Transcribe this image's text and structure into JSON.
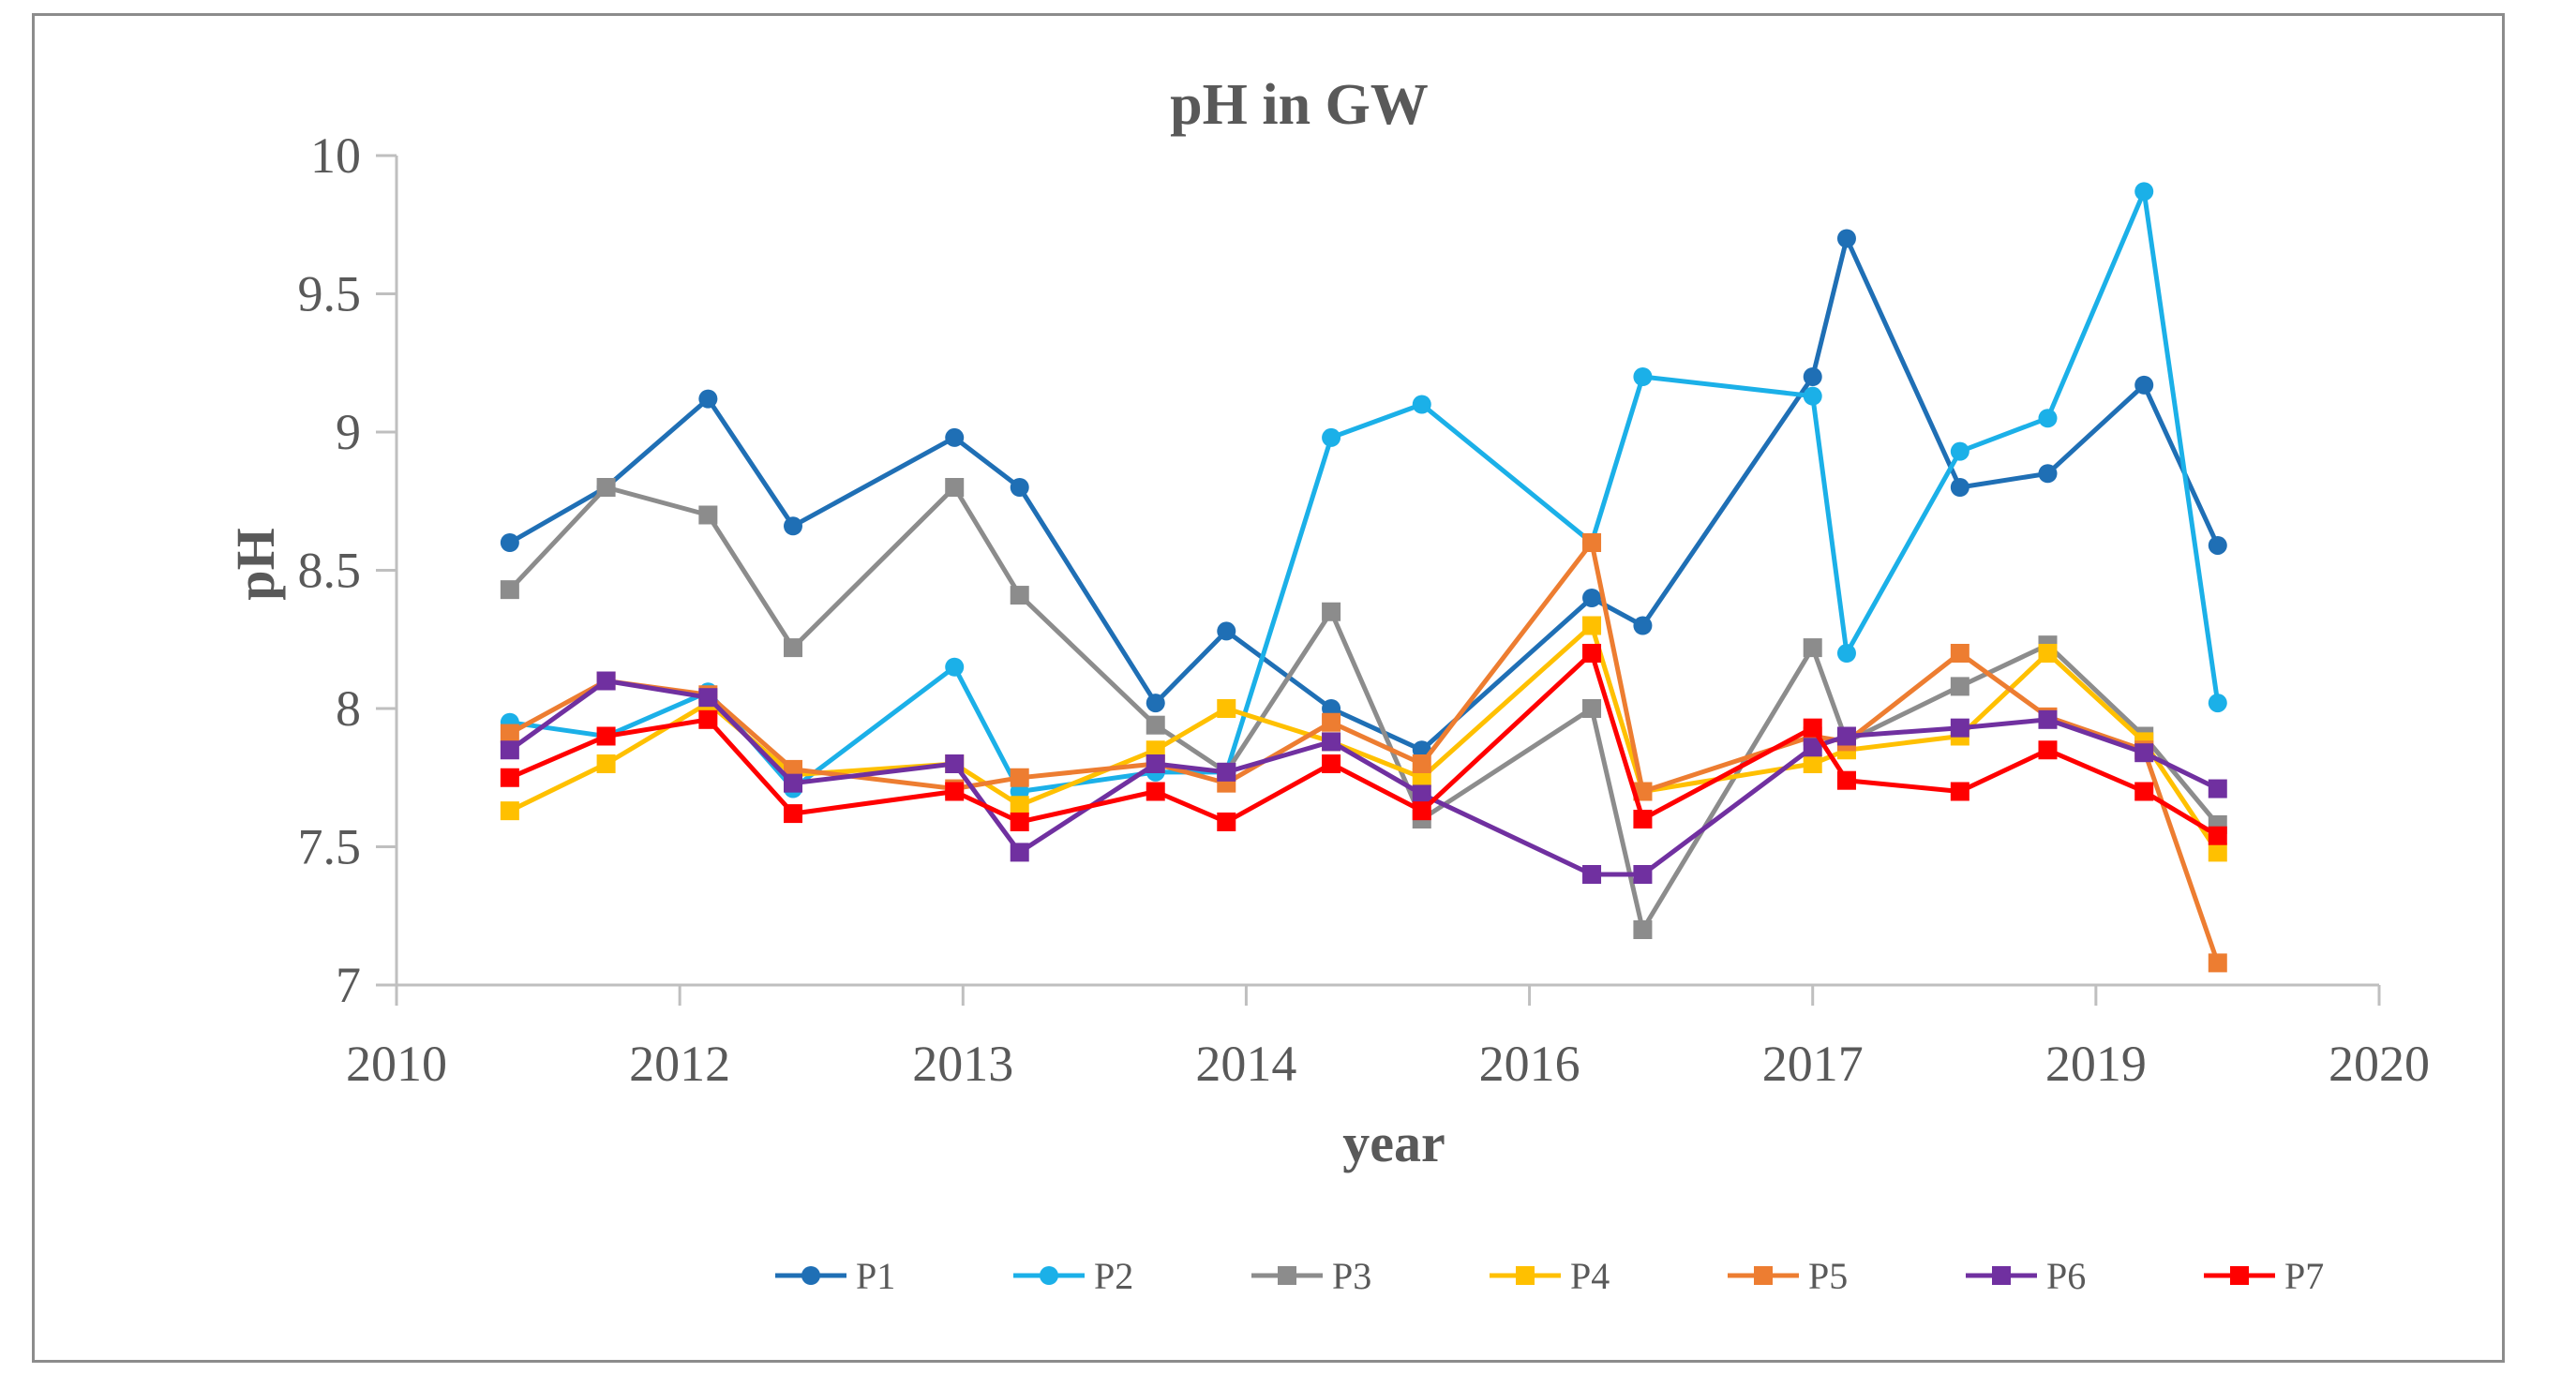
{
  "chart_data": {
    "type": "line",
    "title": "pH in GW",
    "xlabel": "year",
    "ylabel": "pH",
    "ylim": [
      7,
      10
    ],
    "y_ticks": [
      "7",
      "7.5",
      "8",
      "8.5",
      "9",
      "9.5",
      "10"
    ],
    "x_tick_labels": [
      "2010",
      "2012",
      "2013",
      "2014",
      "2016",
      "2017",
      "2019",
      "2020"
    ],
    "x_range": [
      0,
      7
    ],
    "grid": false,
    "legend": "bottom",
    "x": [
      0.4,
      0.74,
      1.1,
      1.4,
      1.97,
      2.2,
      2.68,
      2.93,
      3.3,
      3.62,
      4.22,
      4.4,
      5.0,
      5.12,
      5.52,
      5.83,
      6.17,
      6.43
    ],
    "series": [
      {
        "name": "P1",
        "color": "#1f6fb5",
        "marker": "circle",
        "values": [
          8.6,
          8.8,
          9.12,
          8.66,
          8.98,
          8.8,
          8.02,
          8.28,
          8.0,
          7.85,
          8.4,
          8.3,
          9.2,
          9.7,
          8.8,
          8.85,
          9.17,
          8.59
        ]
      },
      {
        "name": "P2",
        "color": "#1bb0e8",
        "marker": "circle",
        "values": [
          7.95,
          7.9,
          8.06,
          7.71,
          8.15,
          7.7,
          7.77,
          7.77,
          8.98,
          9.1,
          8.6,
          9.2,
          9.13,
          8.2,
          8.93,
          9.05,
          9.87,
          8.02
        ]
      },
      {
        "name": "P3",
        "color": "#8c8c8c",
        "marker": "square",
        "values": [
          8.43,
          8.8,
          8.7,
          8.22,
          8.8,
          8.41,
          7.94,
          7.77,
          8.35,
          7.6,
          8.0,
          7.2,
          8.22,
          7.88,
          8.08,
          8.23,
          7.9,
          7.58
        ]
      },
      {
        "name": "P4",
        "color": "#ffc000",
        "marker": "square",
        "values": [
          7.63,
          7.8,
          8.02,
          7.76,
          7.8,
          7.65,
          7.85,
          8.0,
          7.88,
          7.75,
          8.3,
          7.7,
          7.8,
          7.85,
          7.9,
          8.2,
          7.88,
          7.48
        ]
      },
      {
        "name": "P5",
        "color": "#ed7d31",
        "marker": "square",
        "values": [
          7.91,
          8.1,
          8.05,
          7.78,
          7.71,
          7.75,
          7.8,
          7.73,
          7.95,
          7.8,
          8.6,
          7.7,
          7.9,
          7.88,
          8.2,
          7.97,
          7.85,
          7.08
        ]
      },
      {
        "name": "P6",
        "color": "#7030a0",
        "marker": "square",
        "values": [
          7.85,
          8.1,
          8.04,
          7.73,
          7.8,
          7.48,
          7.8,
          7.77,
          7.88,
          7.69,
          7.4,
          7.4,
          7.86,
          7.9,
          7.93,
          7.96,
          7.84,
          7.71
        ]
      },
      {
        "name": "P7",
        "color": "#ff0000",
        "marker": "square",
        "values": [
          7.75,
          7.9,
          7.96,
          7.62,
          7.7,
          7.59,
          7.7,
          7.59,
          7.8,
          7.63,
          8.2,
          7.6,
          7.93,
          7.74,
          7.7,
          7.85,
          7.7,
          7.54
        ]
      }
    ]
  }
}
